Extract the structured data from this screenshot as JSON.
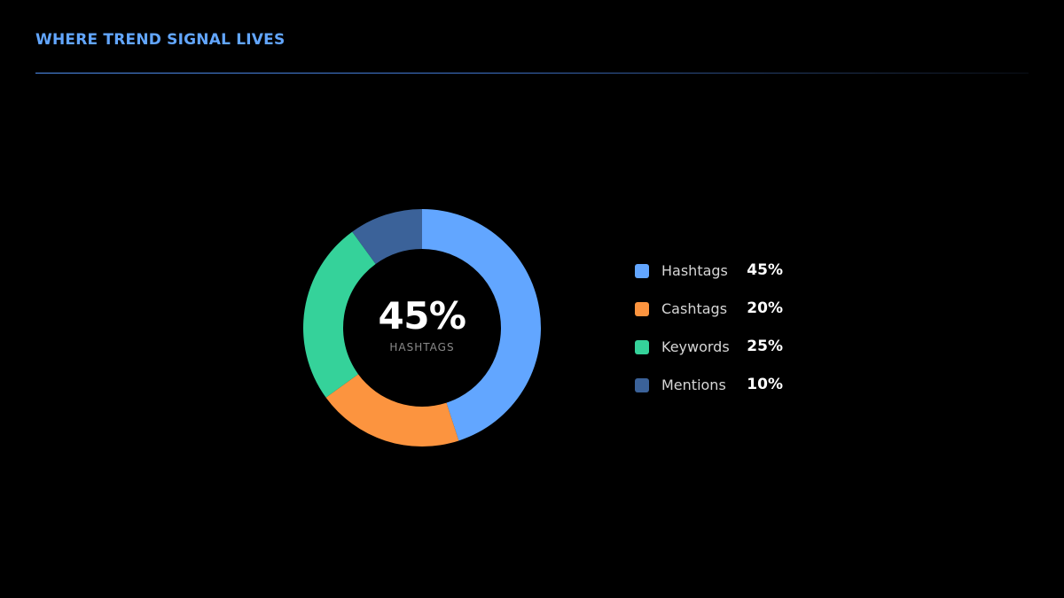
{
  "header": {
    "title": "WHERE TREND SIGNAL LIVES"
  },
  "chart_data": {
    "type": "pie",
    "categories": [
      "Hashtags",
      "Cashtags",
      "Keywords",
      "Mentions"
    ],
    "values": [
      45,
      20,
      25,
      10
    ],
    "value_labels": [
      "45%",
      "20%",
      "25%",
      "10%"
    ],
    "colors": [
      "#62a6ff",
      "#fc943f",
      "#35d29a",
      "#3b6299"
    ],
    "donut": true,
    "center_value": "45%",
    "center_label": "HASHTAGS",
    "legend_position": "right"
  }
}
